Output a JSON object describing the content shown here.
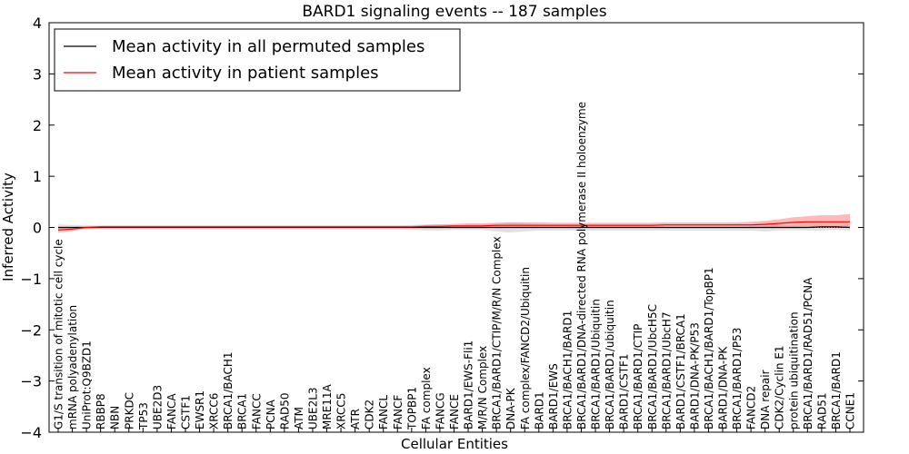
{
  "chart_data": {
    "type": "line",
    "title": "BARD1 signaling events -- 187 samples",
    "xlabel": "Cellular Entities",
    "ylabel": "Inferred Activity",
    "ylim": [
      -4,
      4
    ],
    "yticks": [
      -4,
      -3,
      -2,
      -1,
      0,
      1,
      2,
      3,
      4
    ],
    "ytick_labels": [
      "−4",
      "−3",
      "−2",
      "−1",
      "0",
      "1",
      "2",
      "3",
      "4"
    ],
    "legend_position": "top-left",
    "categories": [
      "G1/S transition of mitotic cell cycle",
      "mRNA polyadenylation",
      "UniProt:Q9BZD1",
      "RBBP8",
      "NBN",
      "PRKDC",
      "TP53",
      "UBE2D3",
      "FANCA",
      "CSTF1",
      "EWSR1",
      "XRCC6",
      "BRCA1/BACH1",
      "BRCA1",
      "FANCC",
      "PCNA",
      "RAD50",
      "ATM",
      "UBE2L3",
      "MRE11A",
      "XRCC5",
      "ATR",
      "CDK2",
      "FANCL",
      "FANCF",
      "TOPBP1",
      "FA complex",
      "FANCG",
      "FANCE",
      "BARD1/EWS-Fli1",
      "M/R/N Complex",
      "BRCA1/BARD1/CTIP/M/R/N Complex",
      "DNA-PK",
      "FA complex/FANCD2/Ubiquitin",
      "BARD1",
      "BARD1/EWS",
      "BRCA1/BACH1/BARD1",
      "BRCA1/BARD1/DNA-directed RNA polymerase II holoenzyme",
      "BRCA1/BARD1/Ubiquitin",
      "BRCA1/BARD1/ubiquitin",
      "BARD1/CSTF1",
      "BRCA1/BARD1/CTIP",
      "BRCA1/BARD1/UbcH5C",
      "BRCA1/BARD1/UbcH7",
      "BARD1/CSTF1/BRCA1",
      "BARD1/DNA-PK/P53",
      "BRCA1/BACH1/BARD1/TopBP1",
      "BARD1/DNA-PK",
      "BRCA1/BARD1/P53",
      "FANCD2",
      "DNA repair",
      "CDK2/Cyclin E1",
      "protein ubiquitination",
      "BRCA1/BARD1/RAD51/PCNA",
      "RAD51",
      "BRCA1/BARD1",
      "CCNE1"
    ],
    "series": [
      {
        "name": "Mean activity in all permuted samples",
        "color": "#000000",
        "band_color": "#c8c8c8",
        "values": [
          0.0,
          0.0,
          0.0,
          0.0,
          0.0,
          0.0,
          0.0,
          0.0,
          0.0,
          0.0,
          0.0,
          0.0,
          0.0,
          0.0,
          0.0,
          0.0,
          0.0,
          0.0,
          0.0,
          0.0,
          0.0,
          0.0,
          0.0,
          0.0,
          0.0,
          0.0,
          0.0,
          0.0,
          0.0,
          0.0,
          0.0,
          0.0,
          0.0,
          0.0,
          0.0,
          0.0,
          0.0,
          0.0,
          0.0,
          0.0,
          0.0,
          0.0,
          0.0,
          0.0,
          0.0,
          0.0,
          0.0,
          0.0,
          0.0,
          0.0,
          0.0,
          0.0,
          0.0,
          0.0,
          0.01,
          0.01,
          0.0
        ],
        "lower": [
          -0.06,
          -0.05,
          -0.04,
          -0.04,
          -0.04,
          -0.04,
          -0.04,
          -0.04,
          -0.04,
          -0.04,
          -0.04,
          -0.04,
          -0.04,
          -0.04,
          -0.04,
          -0.04,
          -0.04,
          -0.04,
          -0.04,
          -0.04,
          -0.04,
          -0.04,
          -0.04,
          -0.04,
          -0.04,
          -0.05,
          -0.06,
          -0.06,
          -0.05,
          -0.05,
          -0.05,
          -0.08,
          -0.1,
          -0.08,
          -0.06,
          -0.06,
          -0.06,
          -0.06,
          -0.06,
          -0.06,
          -0.06,
          -0.06,
          -0.06,
          -0.06,
          -0.06,
          -0.06,
          -0.06,
          -0.06,
          -0.06,
          -0.06,
          -0.08,
          -0.06,
          -0.05,
          -0.06,
          -0.06,
          -0.05,
          -0.06
        ],
        "upper": [
          0.06,
          0.05,
          0.04,
          0.04,
          0.04,
          0.04,
          0.04,
          0.04,
          0.04,
          0.04,
          0.04,
          0.04,
          0.04,
          0.04,
          0.04,
          0.04,
          0.04,
          0.04,
          0.04,
          0.04,
          0.04,
          0.04,
          0.04,
          0.04,
          0.04,
          0.05,
          0.06,
          0.06,
          0.05,
          0.05,
          0.05,
          0.08,
          0.1,
          0.08,
          0.06,
          0.06,
          0.06,
          0.06,
          0.06,
          0.06,
          0.06,
          0.06,
          0.06,
          0.06,
          0.06,
          0.06,
          0.06,
          0.06,
          0.06,
          0.06,
          0.08,
          0.06,
          0.05,
          0.06,
          0.06,
          0.05,
          0.06
        ]
      },
      {
        "name": "Mean activity in patient samples",
        "color": "#ff0000",
        "band_color": "#ff8080",
        "values": [
          -0.05,
          -0.03,
          0.0,
          0.01,
          0.01,
          0.01,
          0.01,
          0.01,
          0.01,
          0.01,
          0.01,
          0.01,
          0.01,
          0.01,
          0.01,
          0.01,
          0.01,
          0.01,
          0.01,
          0.01,
          0.01,
          0.01,
          0.01,
          0.01,
          0.01,
          0.01,
          0.02,
          0.02,
          0.03,
          0.03,
          0.03,
          0.04,
          0.04,
          0.04,
          0.04,
          0.04,
          0.04,
          0.04,
          0.04,
          0.04,
          0.04,
          0.04,
          0.04,
          0.05,
          0.05,
          0.05,
          0.05,
          0.05,
          0.05,
          0.05,
          0.06,
          0.08,
          0.1,
          0.11,
          0.11,
          0.11,
          0.11
        ],
        "lower": [
          -0.1,
          -0.07,
          -0.02,
          -0.01,
          -0.01,
          -0.01,
          -0.01,
          -0.01,
          -0.01,
          -0.01,
          -0.01,
          -0.01,
          -0.01,
          -0.01,
          -0.01,
          -0.01,
          -0.01,
          -0.01,
          -0.01,
          -0.01,
          -0.01,
          -0.01,
          -0.01,
          -0.01,
          -0.01,
          -0.01,
          -0.01,
          -0.01,
          0.0,
          0.0,
          0.0,
          0.01,
          0.01,
          0.01,
          0.01,
          0.01,
          0.01,
          0.01,
          0.01,
          0.01,
          0.01,
          0.01,
          0.01,
          0.02,
          0.02,
          0.02,
          0.02,
          0.02,
          0.02,
          0.02,
          0.01,
          0.01,
          0.01,
          0.01,
          0.0,
          0.0,
          -0.01
        ],
        "upper": [
          0.0,
          0.01,
          0.02,
          0.03,
          0.03,
          0.03,
          0.03,
          0.03,
          0.03,
          0.03,
          0.03,
          0.03,
          0.03,
          0.03,
          0.03,
          0.03,
          0.03,
          0.03,
          0.03,
          0.03,
          0.03,
          0.03,
          0.03,
          0.03,
          0.03,
          0.03,
          0.05,
          0.06,
          0.07,
          0.08,
          0.08,
          0.09,
          0.1,
          0.1,
          0.1,
          0.09,
          0.09,
          0.09,
          0.09,
          0.09,
          0.09,
          0.09,
          0.09,
          0.1,
          0.1,
          0.1,
          0.1,
          0.1,
          0.1,
          0.11,
          0.13,
          0.16,
          0.2,
          0.22,
          0.24,
          0.24,
          0.26
        ]
      }
    ]
  }
}
